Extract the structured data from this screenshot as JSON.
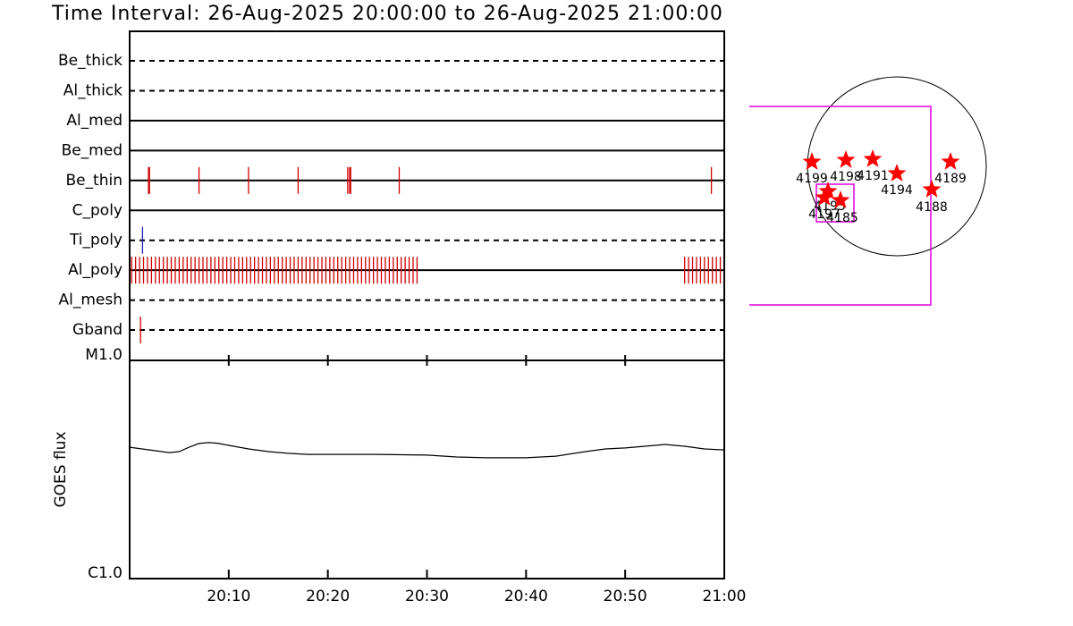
{
  "chart_data": [
    {
      "type": "events",
      "title": "Time Interval: 26-Aug-2025 20:00:00 to 26-Aug-2025 21:00:00",
      "xlim": [
        0,
        60
      ],
      "series": [
        {
          "name": "Be_thick",
          "line": "dashed",
          "color": "#d00000",
          "values": []
        },
        {
          "name": "Al_thick",
          "line": "dashed",
          "color": "#d00000",
          "values": []
        },
        {
          "name": "Al_med",
          "line": "solid",
          "color": "#d00000",
          "values": []
        },
        {
          "name": "Be_med",
          "line": "solid",
          "color": "#d00000",
          "values": []
        },
        {
          "name": "Be_thin",
          "line": "solid",
          "color": "#d00000",
          "values": [
            1.9,
            2.0,
            7.0,
            12.0,
            17.0,
            22.0,
            22.2,
            22.3,
            27.2,
            58.7
          ]
        },
        {
          "name": "C_poly",
          "line": "solid",
          "color": "#d00000",
          "values": []
        },
        {
          "name": "Ti_poly",
          "line": "dashed",
          "color": "#2020c0",
          "values": [
            1.3
          ]
        },
        {
          "name": "Al_poly",
          "line": "solid",
          "color": "#d00000",
          "values": [
            0.2,
            0.6,
            1.0,
            1.4,
            1.8,
            2.2,
            2.6,
            3.0,
            3.4,
            3.8,
            4.2,
            4.6,
            5.0,
            5.4,
            5.8,
            6.2,
            6.6,
            7.0,
            7.4,
            7.8,
            8.2,
            8.6,
            9.0,
            9.4,
            9.8,
            10.2,
            10.6,
            11.0,
            11.4,
            11.8,
            12.2,
            12.6,
            13.0,
            13.4,
            13.8,
            14.2,
            14.6,
            15.0,
            15.4,
            15.8,
            16.2,
            16.6,
            17.0,
            17.4,
            17.8,
            18.2,
            18.6,
            19.0,
            19.4,
            19.8,
            20.2,
            20.6,
            21.0,
            21.4,
            21.8,
            22.2,
            22.6,
            23.0,
            23.4,
            23.8,
            24.2,
            24.6,
            25.0,
            25.4,
            25.8,
            26.2,
            26.6,
            27.0,
            27.4,
            27.8,
            28.2,
            28.6,
            29.0,
            56.0,
            56.4,
            56.8,
            57.2,
            57.6,
            58.0,
            58.4,
            58.8,
            59.2,
            59.6
          ]
        },
        {
          "name": "Al_mesh",
          "line": "dashed",
          "color": "#d00000",
          "values": []
        },
        {
          "name": "Gband",
          "line": "dashed",
          "color": "#d00000",
          "values": [
            1.1
          ]
        }
      ]
    },
    {
      "type": "line",
      "ylabel": "GOES flux",
      "log": true,
      "color": "#000000",
      "x": [
        0,
        2,
        4,
        5,
        6,
        7,
        8,
        9,
        10,
        12,
        14,
        16,
        18,
        20,
        25,
        30,
        33,
        36,
        40,
        43,
        46,
        48,
        50,
        52,
        54,
        56,
        58,
        60
      ],
      "values": [
        4e-06,
        3.89e-06,
        3.78e-06,
        3.82e-06,
        4e-06,
        4.16e-06,
        4.2e-06,
        4.16e-06,
        4.08e-06,
        3.93e-06,
        3.82e-06,
        3.75e-06,
        3.71e-06,
        3.71e-06,
        3.71e-06,
        3.68e-06,
        3.61e-06,
        3.58e-06,
        3.58e-06,
        3.64e-06,
        3.82e-06,
        3.93e-06,
        3.97e-06,
        4.04e-06,
        4.12e-06,
        4.04e-06,
        3.93e-06,
        3.89e-06
      ],
      "xlim": [
        0,
        60
      ],
      "xticks": [
        {
          "value": 10,
          "label": "20:10"
        },
        {
          "value": 20,
          "label": "20:20"
        },
        {
          "value": 30,
          "label": "20:30"
        },
        {
          "value": 40,
          "label": "20:40"
        },
        {
          "value": 50,
          "label": "20:50"
        },
        {
          "value": 60,
          "label": "21:00"
        }
      ],
      "ylim": [
        1e-06,
        1e-05
      ],
      "yticks": [
        {
          "value": 1e-06,
          "label": "C1.0"
        },
        {
          "value": 1e-05,
          "label": "M1.0"
        }
      ]
    }
  ],
  "map": {
    "regions": [
      "4199",
      "4198",
      "4191",
      "4194",
      "4189",
      "4188",
      "4193",
      "4197",
      "4185"
    ]
  }
}
